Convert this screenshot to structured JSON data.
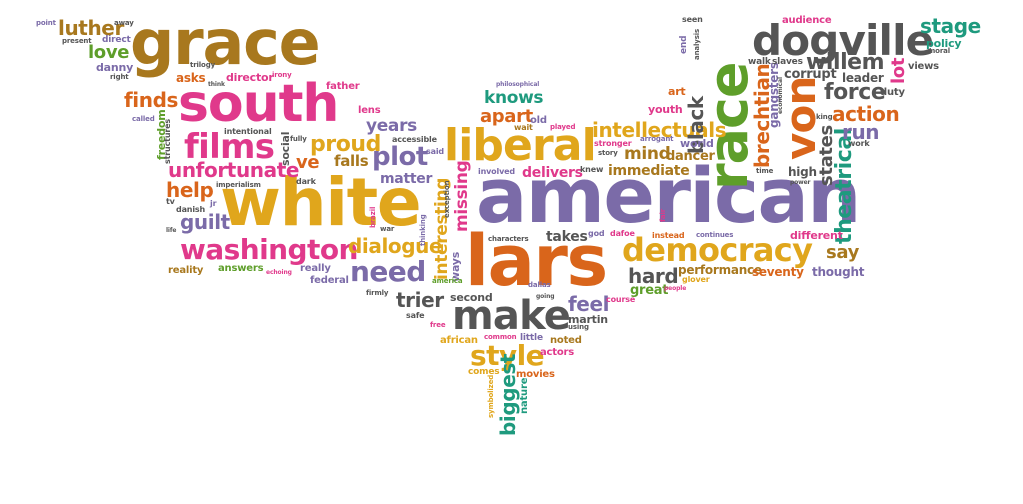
{
  "cloud": {
    "words": [
      {
        "text": "american",
        "color": "#7B6BA8"
      },
      {
        "text": "white",
        "color": "#E0A61C"
      },
      {
        "text": "lars",
        "color": "#D9651B"
      },
      {
        "text": "grace",
        "color": "#A8781E"
      },
      {
        "text": "south",
        "color": "#E0398B"
      },
      {
        "text": "race",
        "color": "#5E9E2A"
      },
      {
        "text": "dogville",
        "color": "#555555"
      },
      {
        "text": "liberal",
        "color": "#E0A61C"
      },
      {
        "text": "make",
        "color": "#555555"
      },
      {
        "text": "democracy",
        "color": "#E0A61C"
      },
      {
        "text": "von",
        "color": "#D9651B"
      },
      {
        "text": "films",
        "color": "#E0398B"
      },
      {
        "text": "washington",
        "color": "#E0398B"
      },
      {
        "text": "need",
        "color": "#7B6BA8"
      },
      {
        "text": "style",
        "color": "#E0A61C"
      },
      {
        "text": "plot",
        "color": "#7B6BA8"
      },
      {
        "text": "unfortunate",
        "color": "#E0398B"
      },
      {
        "text": "intellectuals",
        "color": "#E0A61C"
      },
      {
        "text": "brechtian",
        "color": "#D9651B"
      },
      {
        "text": "theatrical",
        "color": "#1E9A7E"
      },
      {
        "text": "black",
        "color": "#555555"
      },
      {
        "text": "biggest",
        "color": "#1E9A7E"
      },
      {
        "text": "interesting",
        "color": "#E0A61C"
      },
      {
        "text": "proud",
        "color": "#E0A61C"
      },
      {
        "text": "dialogue",
        "color": "#E0A61C"
      },
      {
        "text": "luther",
        "color": "#A8781E"
      },
      {
        "text": "stage",
        "color": "#1E9A7E"
      },
      {
        "text": "willem",
        "color": "#555555"
      },
      {
        "text": "force",
        "color": "#555555"
      },
      {
        "text": "action",
        "color": "#D9651B"
      },
      {
        "text": "states",
        "color": "#555555"
      },
      {
        "text": "missing",
        "color": "#E0398B"
      },
      {
        "text": "guilt",
        "color": "#7B6BA8"
      },
      {
        "text": "help",
        "color": "#D9651B"
      },
      {
        "text": "finds",
        "color": "#D9651B"
      },
      {
        "text": "hard",
        "color": "#555555"
      },
      {
        "text": "feel",
        "color": "#7B6BA8"
      },
      {
        "text": "trier",
        "color": "#555555"
      },
      {
        "text": "knows",
        "color": "#1E9A7E"
      },
      {
        "text": "apart",
        "color": "#D9651B"
      },
      {
        "text": "mind",
        "color": "#A8781E"
      },
      {
        "text": "run",
        "color": "#7B6BA8"
      },
      {
        "text": "lot",
        "color": "#E0398B"
      },
      {
        "text": "say",
        "color": "#A8781E"
      },
      {
        "text": "love",
        "color": "#5E9E2A"
      },
      {
        "text": "years",
        "color": "#7B6BA8"
      },
      {
        "text": "ve",
        "color": "#D9651B"
      },
      {
        "text": "falls",
        "color": "#A8781E"
      },
      {
        "text": "matter",
        "color": "#7B6BA8"
      },
      {
        "text": "delivers",
        "color": "#E0398B"
      },
      {
        "text": "immediate",
        "color": "#A8781E"
      },
      {
        "text": "dancer",
        "color": "#A8781E"
      },
      {
        "text": "takes",
        "color": "#555555"
      },
      {
        "text": "great",
        "color": "#5E9E2A"
      },
      {
        "text": "performance",
        "color": "#A8781E"
      },
      {
        "text": "seventy",
        "color": "#D9651B"
      },
      {
        "text": "thought",
        "color": "#7B6BA8"
      },
      {
        "text": "different",
        "color": "#E0398B"
      },
      {
        "text": "gangsters",
        "color": "#7B6BA8"
      },
      {
        "text": "corrupt",
        "color": "#555555"
      },
      {
        "text": "leader",
        "color": "#555555"
      },
      {
        "text": "policy",
        "color": "#1E9A7E"
      },
      {
        "text": "views",
        "color": "#555555"
      },
      {
        "text": "duty",
        "color": "#555555"
      },
      {
        "text": "audience",
        "color": "#E0398B"
      },
      {
        "text": "walk",
        "color": "#555555"
      },
      {
        "text": "slaves",
        "color": "#555555"
      },
      {
        "text": "youth",
        "color": "#E0398B"
      },
      {
        "text": "art",
        "color": "#D9651B"
      },
      {
        "text": "world",
        "color": "#7B6BA8"
      },
      {
        "text": "high",
        "color": "#555555"
      },
      {
        "text": "asks",
        "color": "#D9651B"
      },
      {
        "text": "director",
        "color": "#E0398B"
      },
      {
        "text": "father",
        "color": "#E0398B"
      },
      {
        "text": "danny",
        "color": "#7B6BA8"
      },
      {
        "text": "direct",
        "color": "#7B6BA8"
      },
      {
        "text": "answers",
        "color": "#5E9E2A"
      },
      {
        "text": "reality",
        "color": "#A8781E"
      },
      {
        "text": "really",
        "color": "#7B6BA8"
      },
      {
        "text": "federal",
        "color": "#7B6BA8"
      },
      {
        "text": "ways",
        "color": "#7B6BA8"
      },
      {
        "text": "second",
        "color": "#555555"
      },
      {
        "text": "martin",
        "color": "#555555"
      },
      {
        "text": "african",
        "color": "#E0A61C"
      },
      {
        "text": "noted",
        "color": "#A8781E"
      },
      {
        "text": "actors",
        "color": "#E0398B"
      },
      {
        "text": "movies",
        "color": "#D9651B"
      },
      {
        "text": "comes",
        "color": "#E0A61C"
      },
      {
        "text": "nature",
        "color": "#1E9A7E"
      },
      {
        "text": "little",
        "color": "#7B6BA8"
      },
      {
        "text": "social",
        "color": "#555555"
      },
      {
        "text": "freedom",
        "color": "#5E9E2A"
      },
      {
        "text": "structures",
        "color": "#555555"
      },
      {
        "text": "lens",
        "color": "#E0398B"
      },
      {
        "text": "accessible",
        "color": "#555555"
      },
      {
        "text": "intentional",
        "color": "#555555"
      },
      {
        "text": "imperialism",
        "color": "#555555"
      },
      {
        "text": "danish",
        "color": "#555555"
      },
      {
        "text": "old",
        "color": "#7B6BA8"
      },
      {
        "text": "wait",
        "color": "#A8781E"
      },
      {
        "text": "played",
        "color": "#E0398B"
      },
      {
        "text": "stronger",
        "color": "#E0398B"
      },
      {
        "text": "story",
        "color": "#555555"
      },
      {
        "text": "arrogant",
        "color": "#7B6BA8"
      },
      {
        "text": "knew",
        "color": "#555555"
      },
      {
        "text": "instead",
        "color": "#D9651B"
      },
      {
        "text": "dafoe",
        "color": "#E0398B"
      },
      {
        "text": "god",
        "color": "#7B6BA8"
      },
      {
        "text": "characters",
        "color": "#555555"
      },
      {
        "text": "continues",
        "color": "#7B6BA8"
      },
      {
        "text": "course",
        "color": "#E0398B"
      },
      {
        "text": "glover",
        "color": "#E0A61C"
      },
      {
        "text": "safe",
        "color": "#555555"
      },
      {
        "text": "free",
        "color": "#E0398B"
      },
      {
        "text": "firmly",
        "color": "#555555"
      },
      {
        "text": "dallas",
        "color": "#7B6BA8"
      },
      {
        "text": "going",
        "color": "#555555"
      },
      {
        "text": "using",
        "color": "#555555"
      },
      {
        "text": "common",
        "color": "#E0398B"
      },
      {
        "text": "exception",
        "color": "#555555"
      },
      {
        "text": "america",
        "color": "#5E9E2A"
      },
      {
        "text": "brazil",
        "color": "#E0398B"
      },
      {
        "text": "war",
        "color": "#555555"
      },
      {
        "text": "involved",
        "color": "#7B6BA8"
      },
      {
        "text": "said",
        "color": "#7B6BA8"
      },
      {
        "text": "fully",
        "color": "#555555"
      },
      {
        "text": "echoing",
        "color": "#E0398B"
      },
      {
        "text": "dark",
        "color": "#555555"
      },
      {
        "text": "jr",
        "color": "#7B6BA8"
      },
      {
        "text": "tv",
        "color": "#555555"
      },
      {
        "text": "life",
        "color": "#555555"
      },
      {
        "text": "called",
        "color": "#7B6BA8"
      },
      {
        "text": "point",
        "color": "#7B6BA8"
      },
      {
        "text": "present",
        "color": "#555555"
      },
      {
        "text": "right",
        "color": "#555555"
      },
      {
        "text": "trilogy",
        "color": "#555555"
      },
      {
        "text": "think",
        "color": "#555555"
      },
      {
        "text": "irony",
        "color": "#E0398B"
      },
      {
        "text": "away",
        "color": "#555555"
      },
      {
        "text": "philosophical",
        "color": "#7B6BA8"
      },
      {
        "text": "seen",
        "color": "#555555"
      },
      {
        "text": "end",
        "color": "#7B6BA8"
      },
      {
        "text": "analysis",
        "color": "#555555"
      },
      {
        "text": "moral",
        "color": "#555555"
      },
      {
        "text": "work",
        "color": "#555555"
      },
      {
        "text": "king",
        "color": "#555555"
      },
      {
        "text": "time",
        "color": "#555555"
      },
      {
        "text": "power",
        "color": "#555555"
      },
      {
        "text": "fair",
        "color": "#E0398B"
      },
      {
        "text": "thinking",
        "color": "#7B6BA8"
      },
      {
        "text": "symbolized",
        "color": "#E0A61C"
      },
      {
        "text": "people",
        "color": "#E0398B"
      },
      {
        "text": "economical",
        "color": "#555555"
      }
    ]
  }
}
